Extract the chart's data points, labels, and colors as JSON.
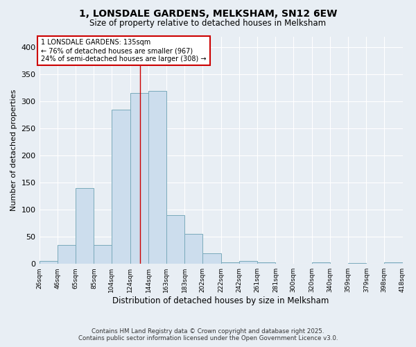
{
  "title": "1, LONSDALE GARDENS, MELKSHAM, SN12 6EW",
  "subtitle": "Size of property relative to detached houses in Melksham",
  "xlabel": "Distribution of detached houses by size in Melksham",
  "ylabel": "Number of detached properties",
  "bins": [
    26,
    46,
    65,
    85,
    104,
    124,
    144,
    163,
    183,
    202,
    222,
    242,
    261,
    281,
    300,
    320,
    340,
    359,
    379,
    398,
    418
  ],
  "counts": [
    5,
    35,
    140,
    35,
    285,
    315,
    320,
    90,
    55,
    20,
    3,
    5,
    3,
    0,
    0,
    3,
    0,
    2,
    0,
    3
  ],
  "bar_color": "#ccdded",
  "bar_edge_color": "#7aaabb",
  "property_line_x": 135,
  "property_line_color": "#cc0000",
  "annotation_text": "1 LONSDALE GARDENS: 135sqm\n← 76% of detached houses are smaller (967)\n24% of semi-detached houses are larger (308) →",
  "annotation_box_color": "#ffffff",
  "annotation_box_edge": "#cc0000",
  "ylim": [
    0,
    420
  ],
  "yticks": [
    0,
    50,
    100,
    150,
    200,
    250,
    300,
    350,
    400
  ],
  "background_color": "#e8eef4",
  "grid_color": "#ffffff",
  "footer_line1": "Contains HM Land Registry data © Crown copyright and database right 2025.",
  "footer_line2": "Contains public sector information licensed under the Open Government Licence v3.0.",
  "tick_labels": [
    "26sqm",
    "46sqm",
    "65sqm",
    "85sqm",
    "104sqm",
    "124sqm",
    "144sqm",
    "163sqm",
    "183sqm",
    "202sqm",
    "222sqm",
    "242sqm",
    "261sqm",
    "281sqm",
    "300sqm",
    "320sqm",
    "340sqm",
    "359sqm",
    "379sqm",
    "398sqm",
    "418sqm"
  ]
}
